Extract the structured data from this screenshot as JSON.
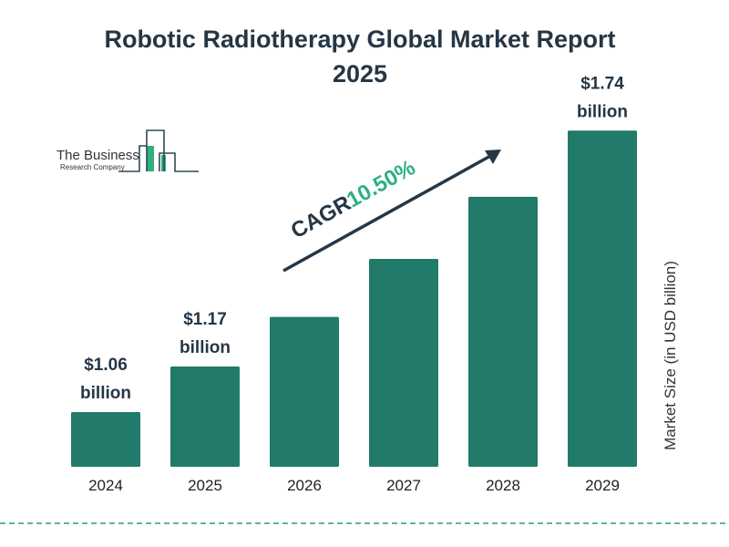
{
  "logo": {
    "line1": "The Business",
    "line2": "Research Company"
  },
  "colors": {
    "bar": "#217a6a",
    "text": "#253746",
    "cagr": "#2eb07f",
    "logo_accent": "#2eb07f"
  },
  "chart_data": {
    "type": "bar",
    "title": "Robotic Radiotherapy Global Market Report 2025",
    "title_lines": [
      "Robotic Radiotherapy Global Market Report",
      "2025"
    ],
    "categories": [
      "2024",
      "2025",
      "2026",
      "2027",
      "2028",
      "2029"
    ],
    "values": [
      1.06,
      1.17,
      1.29,
      1.43,
      1.58,
      1.74
    ],
    "data_labels": [
      {
        "index": 0,
        "value": "$1.06",
        "unit": "billion"
      },
      {
        "index": 1,
        "value": "$1.17",
        "unit": "billion"
      },
      {
        "index": 5,
        "value": "$1.74",
        "unit": "billion"
      }
    ],
    "ylabel": "Market Size (in USD billion)",
    "xlabel": "",
    "grid": false,
    "annotation": {
      "label": "CAGR",
      "value": "10.50%"
    }
  }
}
